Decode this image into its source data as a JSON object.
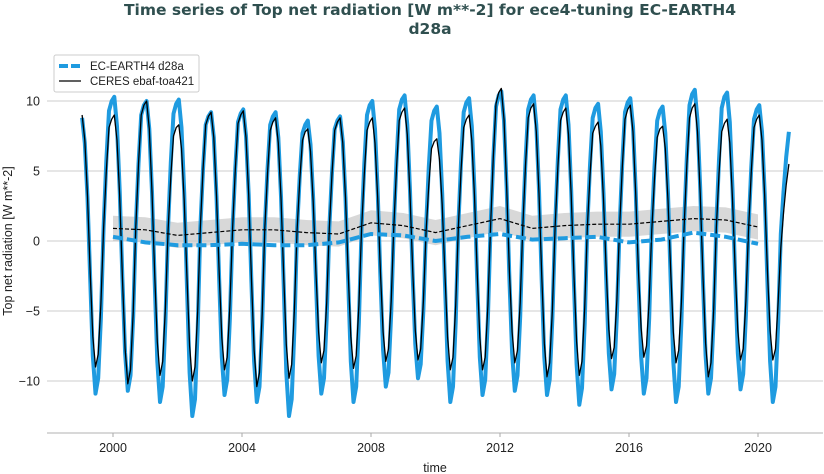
{
  "chart_data": {
    "type": "line",
    "title": "Time series of Top net radiation [W m**-2] for ece4-tuning EC-EARTH4",
    "title_line2": "d28a",
    "xlabel": "time",
    "ylabel": "Top net radiation [W m**-2]",
    "xlim": [
      1998,
      2022
    ],
    "ylim": [
      -13.7,
      14
    ],
    "xticks": [
      "2000",
      "2004",
      "2008",
      "2012",
      "2016",
      "2020"
    ],
    "yticks": [
      -10,
      -5,
      0,
      5,
      10
    ],
    "ytick_labels": [
      "−10",
      "−5",
      "0",
      "5",
      "10"
    ],
    "grid": "horizontal",
    "legend_position": "top-left",
    "monthly_start": "1999-01",
    "monthly_end": "2020-12",
    "series": [
      {
        "name": "EC-EARTH4 d28a",
        "color": "#1f9be0",
        "style": "thick",
        "values": [
          8.8,
          7.0,
          3.1,
          -2.7,
          -8.2,
          -10.9,
          -9.8,
          -5.5,
          1.0,
          5.7,
          9.3,
          10.0,
          10.3,
          8.2,
          3.6,
          -2.7,
          -8.0,
          -10.7,
          -9.6,
          -5.4,
          1.0,
          5.5,
          9.0,
          9.7,
          10.0,
          8.0,
          3.5,
          -2.9,
          -8.6,
          -11.5,
          -10.4,
          -5.8,
          1.0,
          5.6,
          9.1,
          9.8,
          10.1,
          8.1,
          3.5,
          -3.1,
          -9.4,
          -12.5,
          -11.3,
          -6.3,
          0.9,
          5.1,
          8.3,
          8.9,
          9.2,
          7.4,
          3.2,
          -2.8,
          -8.3,
          -11.0,
          -9.9,
          -5.5,
          0.9,
          5.2,
          8.5,
          9.1,
          9.4,
          7.5,
          3.3,
          -2.9,
          -8.6,
          -11.5,
          -10.4,
          -5.8,
          0.9,
          5.1,
          8.3,
          8.9,
          9.2,
          7.4,
          3.2,
          -3.1,
          -9.4,
          -12.5,
          -11.3,
          -6.3,
          0.9,
          4.7,
          7.7,
          8.3,
          8.6,
          6.9,
          3.0,
          -2.7,
          -8.2,
          -10.9,
          -9.8,
          -5.5,
          0.9,
          4.9,
          8.0,
          8.6,
          8.9,
          7.1,
          3.1,
          -2.9,
          -8.6,
          -11.5,
          -10.4,
          -5.8,
          1.0,
          5.5,
          9.0,
          9.7,
          10.0,
          8.0,
          3.5,
          -2.6,
          -7.8,
          -10.4,
          -9.4,
          -5.2,
          1.0,
          5.7,
          9.4,
          10.1,
          10.4,
          8.3,
          3.6,
          -2.5,
          -7.4,
          -9.8,
          -8.8,
          -4.9,
          1.0,
          5.3,
          8.6,
          9.3,
          9.6,
          7.7,
          3.4,
          -2.9,
          -8.6,
          -11.5,
          -10.4,
          -5.8,
          1.0,
          5.6,
          9.2,
          9.9,
          10.2,
          8.2,
          3.6,
          -2.8,
          -8.3,
          -11.0,
          -9.9,
          -5.5,
          1.1,
          5.9,
          9.6,
          10.4,
          10.7,
          8.6,
          3.7,
          -2.7,
          -8.0,
          -10.7,
          -9.6,
          -5.4,
          1.0,
          5.7,
          9.4,
          10.1,
          10.4,
          8.3,
          3.6,
          -2.8,
          -8.3,
          -11.0,
          -9.9,
          -5.5,
          1.0,
          5.7,
          9.4,
          10.1,
          10.4,
          8.3,
          3.6,
          -2.9,
          -8.8,
          -11.7,
          -10.5,
          -5.9,
          1.0,
          5.4,
          8.8,
          9.5,
          9.8,
          7.8,
          3.4,
          -2.7,
          -8.0,
          -10.6,
          -9.5,
          -5.3,
          1.0,
          5.6,
          9.2,
          9.9,
          10.2,
          8.2,
          3.6,
          -2.7,
          -8.2,
          -10.9,
          -9.8,
          -5.5,
          1.0,
          5.3,
          8.6,
          9.3,
          9.6,
          7.7,
          3.4,
          -2.9,
          -8.6,
          -11.5,
          -10.4,
          -5.8,
          1.1,
          5.9,
          9.7,
          10.5,
          10.8,
          8.6,
          3.8,
          -2.7,
          -8.2,
          -10.9,
          -9.8,
          -5.5,
          1.1,
          5.8,
          9.5,
          10.3,
          10.6,
          8.5,
          3.7,
          -2.7,
          -8.0,
          -10.6,
          -9.5,
          -5.3,
          1.0,
          5.3,
          8.7,
          9.4,
          9.7,
          7.8,
          3.4,
          -2.9,
          -8.6,
          -11.5,
          -10.4,
          -5.8,
          0.5,
          3.5,
          6.0,
          7.8
        ]
      },
      {
        "name": "CERES ebaf-toa421",
        "color": "#000000",
        "style": "thin",
        "values": [
          9.0,
          7.2,
          3.2,
          -2.3,
          -6.8,
          -9.0,
          -8.1,
          -4.5,
          0.9,
          5.0,
          8.1,
          8.7,
          9.0,
          7.2,
          3.2,
          -2.6,
          -7.7,
          -10.2,
          -9.2,
          -5.1,
          1.0,
          5.5,
          9.0,
          9.7,
          10.0,
          8.0,
          3.5,
          -2.4,
          -7.2,
          -9.6,
          -8.6,
          -4.8,
          0.8,
          4.6,
          7.5,
          8.1,
          8.3,
          6.6,
          2.9,
          -2.5,
          -7.5,
          -10.0,
          -9.0,
          -5.0,
          0.9,
          5.1,
          8.3,
          8.9,
          9.2,
          7.4,
          3.2,
          -2.3,
          -6.9,
          -9.2,
          -8.3,
          -4.6,
          0.9,
          5.1,
          8.4,
          9.0,
          9.3,
          7.4,
          3.3,
          -2.6,
          -7.8,
          -10.4,
          -9.4,
          -5.2,
          0.9,
          4.8,
          7.9,
          8.5,
          8.8,
          7.0,
          3.1,
          -2.5,
          -7.4,
          -9.8,
          -8.8,
          -4.9,
          0.8,
          4.4,
          7.2,
          7.8,
          8.0,
          6.4,
          2.8,
          -2.2,
          -6.5,
          -8.7,
          -7.8,
          -4.4,
          0.9,
          4.8,
          7.9,
          8.5,
          8.8,
          7.0,
          3.1,
          -2.3,
          -6.8,
          -9.1,
          -8.2,
          -4.6,
          0.9,
          4.8,
          7.9,
          8.5,
          8.8,
          7.0,
          3.1,
          -2.2,
          -6.5,
          -8.6,
          -7.7,
          -4.3,
          1.0,
          5.2,
          8.6,
          9.2,
          9.5,
          7.6,
          3.3,
          -2.1,
          -6.4,
          -8.5,
          -7.7,
          -4.3,
          0.7,
          4.0,
          6.6,
          7.1,
          7.3,
          5.8,
          2.6,
          -2.3,
          -6.9,
          -9.2,
          -8.3,
          -4.6,
          0.9,
          5.0,
          8.1,
          8.7,
          9.0,
          7.2,
          3.2,
          -2.3,
          -6.9,
          -9.2,
          -8.3,
          -4.6,
          1.1,
          6.0,
          9.8,
          10.6,
          10.9,
          8.7,
          3.8,
          -2.2,
          -6.5,
          -8.7,
          -7.8,
          -4.4,
          1.0,
          5.4,
          8.8,
          9.5,
          9.8,
          7.8,
          3.4,
          -2.4,
          -7.3,
          -9.7,
          -8.7,
          -4.9,
          1.0,
          5.2,
          8.6,
          9.2,
          9.5,
          7.6,
          3.3,
          -2.4,
          -7.2,
          -9.6,
          -8.6,
          -4.8,
          0.9,
          4.7,
          7.7,
          8.2,
          8.5,
          6.8,
          3.0,
          -2.1,
          -6.3,
          -8.4,
          -7.6,
          -4.2,
          1.0,
          5.3,
          8.7,
          9.4,
          9.7,
          7.8,
          3.4,
          -2.1,
          -6.2,
          -8.3,
          -7.5,
          -4.2,
          0.8,
          4.5,
          7.4,
          8.0,
          8.2,
          6.6,
          2.9,
          -2.2,
          -6.5,
          -8.7,
          -7.8,
          -4.4,
          1.0,
          5.4,
          8.8,
          9.5,
          9.8,
          7.8,
          3.4,
          -2.4,
          -7.3,
          -9.7,
          -8.7,
          -4.9,
          0.9,
          4.8,
          7.8,
          8.4,
          8.7,
          7.0,
          3.0,
          -2.1,
          -6.4,
          -8.5,
          -7.7,
          -4.3,
          0.9,
          5.0,
          8.1,
          8.7,
          9.0,
          7.2,
          3.2,
          -2.1,
          -6.4,
          -8.5,
          -7.7,
          -4.3,
          -0.5,
          2.0,
          4.0,
          5.5
        ]
      }
    ],
    "running_mean": {
      "x": [
        2000,
        2001,
        2002,
        2003,
        2004,
        2005,
        2006,
        2007,
        2008,
        2009,
        2010,
        2011,
        2012,
        2013,
        2014,
        2015,
        2016,
        2017,
        2018,
        2019,
        2020
      ],
      "model": [
        0.3,
        -0.1,
        -0.3,
        -0.3,
        -0.2,
        -0.3,
        -0.3,
        -0.1,
        0.5,
        0.4,
        0.0,
        0.3,
        0.5,
        0.1,
        0.2,
        0.3,
        -0.1,
        0.1,
        0.6,
        0.3,
        -0.2
      ],
      "obs": [
        0.9,
        0.8,
        0.4,
        0.6,
        0.8,
        0.8,
        0.6,
        0.5,
        1.3,
        1.1,
        0.6,
        1.1,
        1.6,
        0.9,
        1.1,
        1.2,
        1.2,
        1.4,
        1.6,
        1.5,
        1.0
      ],
      "obs_band_lower": [
        0.0,
        -0.1,
        -0.5,
        -0.3,
        -0.1,
        -0.1,
        -0.3,
        -0.4,
        0.4,
        0.2,
        -0.3,
        0.2,
        0.7,
        0.0,
        0.2,
        0.3,
        0.3,
        0.5,
        0.7,
        0.6,
        0.1
      ],
      "obs_band_upper": [
        1.8,
        1.7,
        1.3,
        1.5,
        1.7,
        1.7,
        1.5,
        1.4,
        2.2,
        2.0,
        1.5,
        2.0,
        2.5,
        1.8,
        2.0,
        2.1,
        2.1,
        2.3,
        2.5,
        2.4,
        1.9
      ]
    }
  }
}
